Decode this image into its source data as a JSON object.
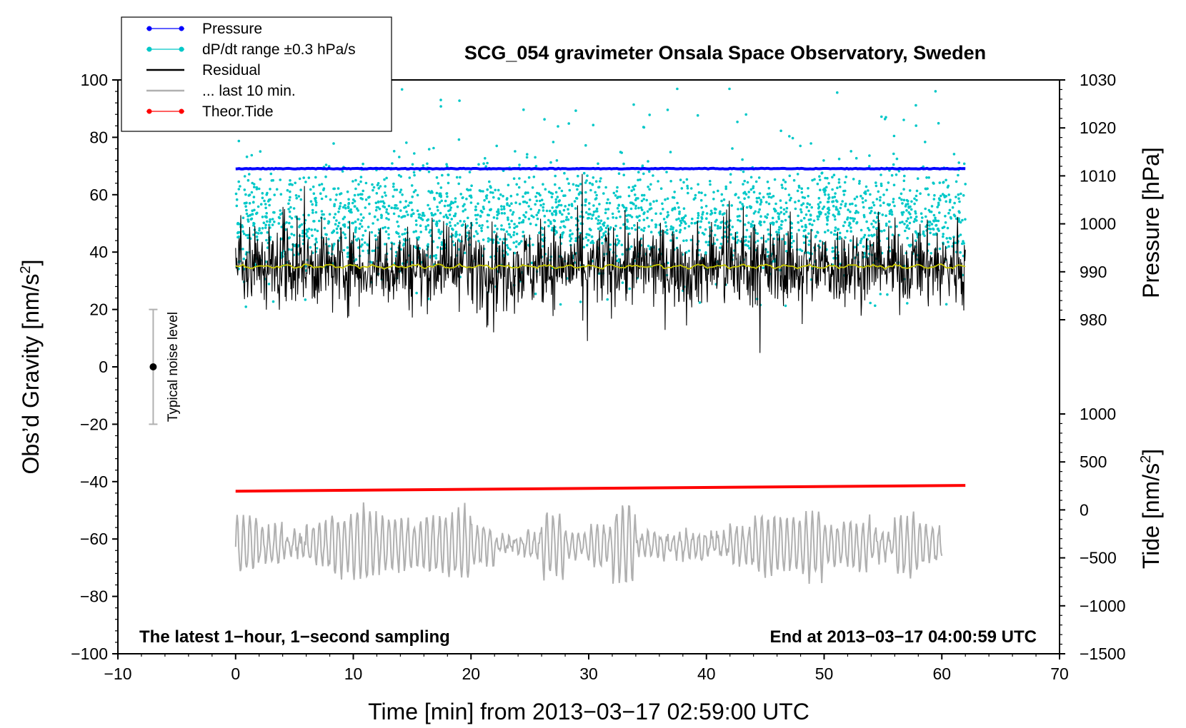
{
  "chart_data": {
    "type": "line",
    "title": "SCG_054 gravimeter Onsala Space Observatory, Sweden",
    "xlabel": "Time [min] from 2013−03−17 02:59:00 UTC",
    "ylabel_left": "Obs’d Gravity [nm/s",
    "ylabel_left_sup": "2",
    "ylabel_left_close": "]",
    "ylabel_right_top": "Pressure [hPa]",
    "ylabel_right_bottom": "Tide [nm/s",
    "ylabel_right_bottom_sup": "2",
    "ylabel_right_bottom_close": "]",
    "xlim": [
      -10,
      70
    ],
    "ylim_left": [
      -100,
      100
    ],
    "ylim_pressure": [
      970,
      1030
    ],
    "ylim_tide": [
      -1500,
      1500
    ],
    "x_ticks": [
      "−10",
      "0",
      "10",
      "20",
      "30",
      "40",
      "50",
      "60",
      "70"
    ],
    "x_tick_values": [
      -10,
      0,
      10,
      20,
      30,
      40,
      50,
      60,
      70
    ],
    "y_left_ticks": [
      "100",
      "80",
      "60",
      "40",
      "20",
      "0",
      "−20",
      "−40",
      "−60",
      "−80",
      "−100"
    ],
    "y_left_tick_values": [
      100,
      80,
      60,
      40,
      20,
      0,
      -20,
      -40,
      -60,
      -80,
      -100
    ],
    "y_pressure_ticks": [
      "1030",
      "1020",
      "1010",
      "1000",
      "990",
      "980"
    ],
    "y_pressure_tick_values": [
      1030,
      1020,
      1010,
      1000,
      990,
      980
    ],
    "y_tide_ticks": [
      "1000",
      "500",
      "0",
      "−500",
      "−1000",
      "−1500"
    ],
    "y_tide_tick_values": [
      1000,
      500,
      0,
      -500,
      -1000,
      -1500
    ],
    "legend": {
      "position": "top-left",
      "items": [
        {
          "label": "Pressure",
          "color": "#0000ff",
          "marker": "dot"
        },
        {
          "label": "dP/dt range ±0.3 hPa/s",
          "color": "#00c8c8",
          "marker": "dot"
        },
        {
          "label": "Residual",
          "color": "#000000",
          "marker": "none"
        },
        {
          "label": "... last 10 min.",
          "color": "#b0b0b0",
          "marker": "none"
        },
        {
          "label": "Theor.Tide",
          "color": "#ff0000",
          "marker": "dot"
        }
      ]
    },
    "series": [
      {
        "name": "Pressure",
        "axis": "pressure",
        "color": "#0000ff",
        "x_range": [
          0,
          62
        ],
        "value": 1011.5
      },
      {
        "name": "dP/dt range ±0.3 hPa/s",
        "axis": "left",
        "color": "#00c8c8",
        "x_range": [
          0,
          62
        ],
        "center": 52,
        "spread": 12
      },
      {
        "name": "Residual",
        "axis": "left",
        "color": "#000000",
        "x_range": [
          0,
          62
        ],
        "center": 35,
        "spread": 7
      },
      {
        "name": "Residual mean",
        "axis": "left",
        "color": "#c8c800",
        "x_range": [
          0,
          62
        ],
        "value": 35
      },
      {
        "name": "... last 10 min.",
        "axis": "left",
        "color": "#b0b0b0",
        "x_range": [
          0,
          60
        ],
        "center": -62,
        "spread": 6
      },
      {
        "name": "Theor.Tide",
        "axis": "tide",
        "color": "#ff0000",
        "x_range": [
          0,
          62
        ],
        "start": 195,
        "end": 255
      }
    ],
    "annotations": {
      "bottom_left": "The latest 1−hour, 1−second sampling",
      "bottom_right": "End at 2013−03−17 04:00:59 UTC",
      "noise_label": "Typical noise level",
      "noise_x": -7,
      "noise_center": 0,
      "noise_half_range": 20
    },
    "colors": {
      "pressure": "#0000ff",
      "dpdt": "#00c8c8",
      "residual": "#000000",
      "residual_mean": "#c8c800",
      "last10": "#b0b0b0",
      "tide": "#ff0000",
      "noise_bar": "#b0b0b0"
    }
  }
}
